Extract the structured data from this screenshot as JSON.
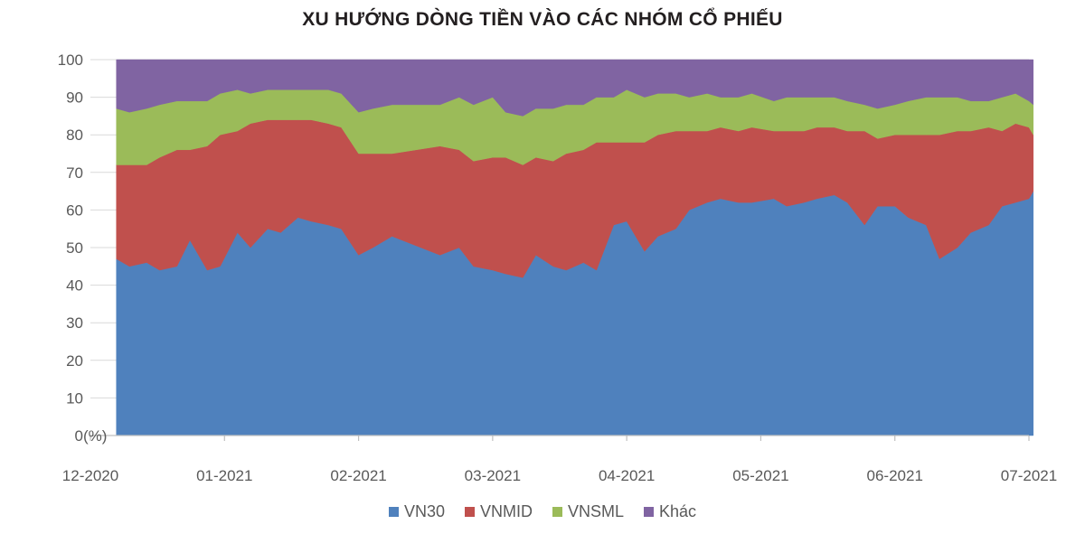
{
  "chart_data": {
    "type": "area",
    "stacked": true,
    "title": "XU HƯỚNG DÒNG TIỀN VÀO CÁC NHÓM CỔ PHIẾU",
    "y_unit_label": "(%)",
    "ylim": [
      0,
      100
    ],
    "y_ticks": [
      0,
      10,
      20,
      30,
      40,
      50,
      60,
      70,
      80,
      90,
      100
    ],
    "y_tick_labels": [
      "0",
      "10",
      "20",
      "30",
      "40",
      "50",
      "60",
      "70",
      "80",
      "90",
      "100"
    ],
    "x_tick_labels": [
      "12-2020",
      "01-2021",
      "02-2021",
      "03-2021",
      "04-2021",
      "05-2021",
      "06-2021",
      "07-2021"
    ],
    "x_range": [
      "2020-12",
      "2021-07"
    ],
    "grid": "horizontal",
    "legend_position": "bottom",
    "x": [
      "2020-12-07",
      "2020-12-10",
      "2020-12-14",
      "2020-12-17",
      "2020-12-21",
      "2020-12-24",
      "2020-12-28",
      "2020-12-31",
      "2021-01-04",
      "2021-01-07",
      "2021-01-11",
      "2021-01-14",
      "2021-01-18",
      "2021-01-21",
      "2021-01-25",
      "2021-01-28",
      "2021-02-01",
      "2021-02-04",
      "2021-02-08",
      "2021-02-18",
      "2021-02-22",
      "2021-02-25",
      "2021-03-01",
      "2021-03-04",
      "2021-03-08",
      "2021-03-11",
      "2021-03-15",
      "2021-03-18",
      "2021-03-22",
      "2021-03-25",
      "2021-03-29",
      "2021-04-01",
      "2021-04-05",
      "2021-04-08",
      "2021-04-12",
      "2021-04-15",
      "2021-04-19",
      "2021-04-22",
      "2021-04-26",
      "2021-04-29",
      "2021-05-04",
      "2021-05-07",
      "2021-05-11",
      "2021-05-14",
      "2021-05-18",
      "2021-05-21",
      "2021-05-25",
      "2021-05-28",
      "2021-06-01",
      "2021-06-04",
      "2021-06-08",
      "2021-06-11",
      "2021-06-15",
      "2021-06-18",
      "2021-06-22",
      "2021-06-25",
      "2021-06-28",
      "2021-07-01",
      "2021-07-02"
    ],
    "series": [
      {
        "name": "VN30",
        "color": "#4f81bd",
        "values": [
          47,
          45,
          46,
          44,
          45,
          52,
          44,
          45,
          54,
          50,
          55,
          54,
          58,
          57,
          56,
          55,
          48,
          50,
          53,
          48,
          50,
          45,
          44,
          43,
          42,
          48,
          45,
          44,
          46,
          44,
          56,
          57,
          49,
          53,
          55,
          60,
          62,
          63,
          62,
          62,
          63,
          61,
          62,
          63,
          64,
          62,
          56,
          61,
          61,
          58,
          56,
          47,
          50,
          54,
          56,
          61,
          62,
          63,
          65
        ]
      },
      {
        "name": "VNMID",
        "color": "#c0504d",
        "values": [
          25,
          27,
          26,
          30,
          31,
          24,
          33,
          35,
          27,
          33,
          29,
          30,
          26,
          27,
          27,
          27,
          27,
          25,
          22,
          29,
          26,
          28,
          30,
          31,
          30,
          26,
          28,
          31,
          30,
          34,
          22,
          21,
          29,
          27,
          26,
          21,
          19,
          19,
          19,
          20,
          18,
          20,
          19,
          19,
          18,
          19,
          25,
          18,
          19,
          22,
          24,
          33,
          31,
          27,
          26,
          20,
          21,
          19,
          15
        ]
      },
      {
        "name": "VNSML",
        "color": "#9bbb59",
        "values": [
          15,
          14,
          15,
          14,
          13,
          13,
          12,
          11,
          11,
          8,
          8,
          8,
          8,
          8,
          9,
          9,
          11,
          12,
          13,
          11,
          14,
          15,
          16,
          12,
          13,
          13,
          14,
          13,
          12,
          12,
          12,
          14,
          12,
          11,
          10,
          9,
          10,
          8,
          9,
          9,
          8,
          9,
          9,
          8,
          8,
          8,
          7,
          8,
          8,
          9,
          10,
          10,
          9,
          8,
          7,
          9,
          8,
          7,
          8
        ]
      },
      {
        "name": "Khác",
        "color": "#8064a2",
        "values": [
          13,
          14,
          13,
          12,
          11,
          11,
          11,
          9,
          8,
          9,
          8,
          8,
          8,
          8,
          8,
          9,
          14,
          13,
          12,
          12,
          10,
          12,
          10,
          14,
          15,
          13,
          13,
          12,
          12,
          10,
          10,
          8,
          10,
          9,
          9,
          10,
          9,
          10,
          10,
          9,
          11,
          10,
          10,
          10,
          10,
          11,
          12,
          13,
          12,
          11,
          10,
          10,
          10,
          11,
          11,
          10,
          9,
          11,
          12
        ]
      }
    ]
  }
}
